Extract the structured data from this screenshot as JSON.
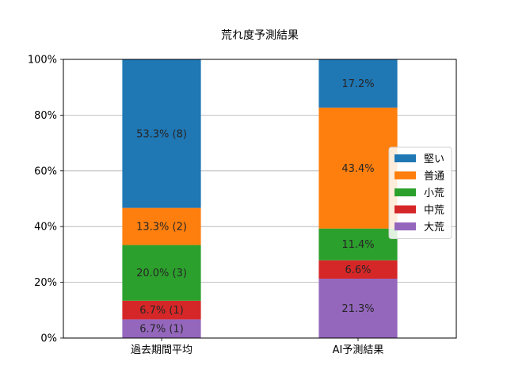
{
  "chart_data": {
    "type": "bar",
    "stacked": true,
    "title": "荒れ度予測結果",
    "xlabel": "",
    "ylabel": "",
    "ylim": [
      0,
      100
    ],
    "ytick_labels": [
      "0%",
      "20%",
      "40%",
      "60%",
      "80%",
      "100%"
    ],
    "grid": "horizontal",
    "legend_position": "right",
    "categories": [
      "過去期間平均",
      "AI予測結果"
    ],
    "series": [
      {
        "name": "大荒",
        "color": "#9467bd",
        "values": [
          6.7,
          21.3
        ],
        "labels": [
          "6.7% (1)",
          "21.3%"
        ]
      },
      {
        "name": "中荒",
        "color": "#d62728",
        "values": [
          6.7,
          6.6
        ],
        "labels": [
          "6.7% (1)",
          "6.6%"
        ]
      },
      {
        "name": "小荒",
        "color": "#2ca02c",
        "values": [
          20.0,
          11.4
        ],
        "labels": [
          "20.0% (3)",
          "11.4%"
        ]
      },
      {
        "name": "普通",
        "color": "#ff7f0e",
        "values": [
          13.3,
          43.4
        ],
        "labels": [
          "13.3% (2)",
          "43.4%"
        ]
      },
      {
        "name": "堅い",
        "color": "#1f77b4",
        "values": [
          53.3,
          17.2
        ],
        "labels": [
          "53.3% (8)",
          "17.2%"
        ]
      }
    ],
    "legend_order": [
      "堅い",
      "普通",
      "小荒",
      "中荒",
      "大荒"
    ]
  }
}
